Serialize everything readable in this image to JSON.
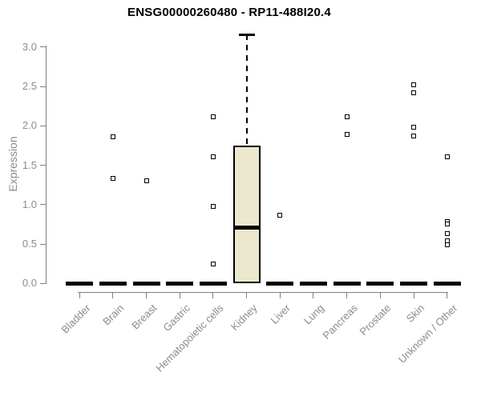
{
  "chart_data": {
    "type": "boxplot",
    "title": "ENSG00000260480 - RP11-488I20.4",
    "ylabel": "Expression",
    "xlabel": "",
    "y_ticks": [
      0.0,
      0.5,
      1.0,
      1.5,
      2.0,
      2.5,
      3.0
    ],
    "ylim": [
      0.0,
      3.2
    ],
    "grid": false,
    "legend": "none",
    "categories": [
      "Bladder",
      "Brain",
      "Breast",
      "Gastric",
      "Hematopoietic cells",
      "Kidney",
      "Liver",
      "Lung",
      "Pancreas",
      "Prostate",
      "Skin",
      "Unknown / Other"
    ],
    "boxes": [
      {
        "category": "Bladder",
        "median": 0,
        "q1": 0,
        "q3": 0,
        "whisker_low": 0,
        "whisker_high": 0,
        "outliers": []
      },
      {
        "category": "Brain",
        "median": 0,
        "q1": 0,
        "q3": 0,
        "whisker_low": 0,
        "whisker_high": 0,
        "outliers": [
          1.86,
          1.33
        ]
      },
      {
        "category": "Breast",
        "median": 0,
        "q1": 0,
        "q3": 0,
        "whisker_low": 0,
        "whisker_high": 0,
        "outliers": [
          1.3
        ]
      },
      {
        "category": "Gastric",
        "median": 0,
        "q1": 0,
        "q3": 0,
        "whisker_low": 0,
        "whisker_high": 0,
        "outliers": []
      },
      {
        "category": "Hematopoietic cells",
        "median": 0,
        "q1": 0,
        "q3": 0,
        "whisker_low": 0,
        "whisker_high": 0,
        "outliers": [
          2.11,
          1.61,
          0.98,
          0.25
        ]
      },
      {
        "category": "Kidney",
        "median": 0.71,
        "q1": 0,
        "q3": 1.75,
        "whisker_low": 0,
        "whisker_high": 3.16,
        "outliers": []
      },
      {
        "category": "Liver",
        "median": 0,
        "q1": 0,
        "q3": 0,
        "whisker_low": 0,
        "whisker_high": 0,
        "outliers": [
          0.87
        ]
      },
      {
        "category": "Lung",
        "median": 0,
        "q1": 0,
        "q3": 0,
        "whisker_low": 0,
        "whisker_high": 0,
        "outliers": []
      },
      {
        "category": "Pancreas",
        "median": 0,
        "q1": 0,
        "q3": 0,
        "whisker_low": 0,
        "whisker_high": 0,
        "outliers": [
          2.11,
          1.89
        ]
      },
      {
        "category": "Prostate",
        "median": 0,
        "q1": 0,
        "q3": 0,
        "whisker_low": 0,
        "whisker_high": 0,
        "outliers": []
      },
      {
        "category": "Skin",
        "median": 0,
        "q1": 0,
        "q3": 0,
        "whisker_low": 0,
        "whisker_high": 0,
        "outliers": [
          2.52,
          2.42,
          1.98,
          1.87
        ]
      },
      {
        "category": "Unknown / Other",
        "median": 0,
        "q1": 0,
        "q3": 0,
        "whisker_low": 0,
        "whisker_high": 0,
        "outliers": [
          1.61,
          0.78,
          0.75,
          0.63,
          0.54,
          0.49
        ]
      }
    ],
    "colors": {
      "box_fill": "#ece8cd",
      "box_line": "#000000",
      "axis": "#808080",
      "tick_label": "#8c8c8c",
      "title": "#000000",
      "background": "#ffffff"
    }
  }
}
